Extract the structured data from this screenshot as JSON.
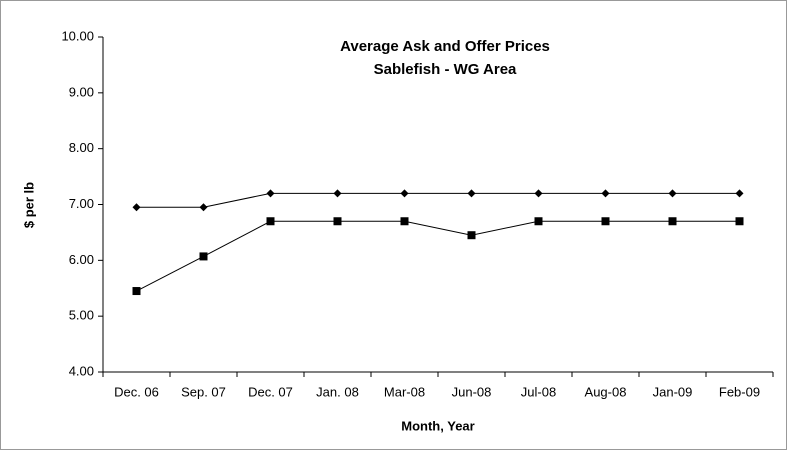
{
  "chart_data": {
    "type": "line",
    "title": "Average Ask and Offer Prices",
    "subtitle": "Sablefish - WG Area",
    "x_label": "Month, Year",
    "y_label": "$ per lb",
    "categories": [
      "Dec. 06",
      "Sep. 07",
      "Dec. 07",
      "Jan. 08",
      "Mar-08",
      "Jun-08",
      "Jul-08",
      "Aug-08",
      "Jan-09",
      "Feb-09"
    ],
    "series": [
      {
        "color": "#000000",
        "marker": "diamond",
        "values": [
          6.95,
          6.95,
          7.2,
          7.2,
          7.2,
          7.2,
          7.2,
          7.2,
          7.2,
          7.2
        ]
      },
      {
        "color": "#000000",
        "marker": "square",
        "values": [
          5.45,
          6.07,
          6.7,
          6.7,
          6.7,
          6.45,
          6.7,
          6.7,
          6.7,
          6.7
        ]
      }
    ],
    "ylim": [
      4,
      10
    ],
    "yticks": [
      {
        "value": 4,
        "label": "4.00"
      },
      {
        "value": 5,
        "label": "5.00"
      },
      {
        "value": 6,
        "label": "6.00"
      },
      {
        "value": 7,
        "label": "7.00"
      },
      {
        "value": 8,
        "label": "8.00"
      },
      {
        "value": 9,
        "label": "9.00"
      },
      {
        "value": 10,
        "label": "10.00"
      }
    ],
    "grid": false
  }
}
